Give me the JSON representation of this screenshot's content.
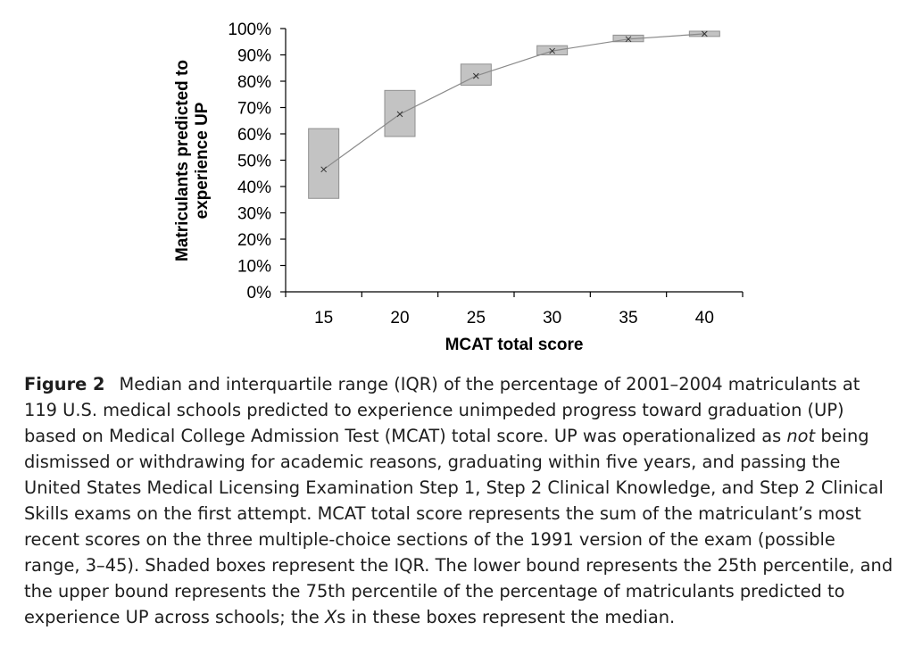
{
  "chart_data": {
    "type": "box",
    "x": [
      15,
      20,
      25,
      30,
      35,
      40
    ],
    "median": [
      46.5,
      67.5,
      82,
      91.5,
      96,
      98
    ],
    "q1": [
      35.5,
      59,
      78.5,
      90,
      95,
      97
    ],
    "q3": [
      62,
      76.5,
      86.5,
      93.5,
      97.5,
      99
    ],
    "xlabel": "MCAT total score",
    "ylabel_lines": [
      "Matriculants predicted to",
      "experience UP"
    ],
    "x_ticks": [
      "15",
      "20",
      "25",
      "30",
      "35",
      "40"
    ],
    "y_ticks": [
      "0%",
      "10%",
      "20%",
      "30%",
      "40%",
      "50%",
      "60%",
      "70%",
      "80%",
      "90%",
      "100%"
    ],
    "ylim": [
      0,
      100
    ],
    "grid": false,
    "colors": {
      "box_fill": "#c3c3c3",
      "box_stroke": "#8f8f8f",
      "line": "#8a8a8a"
    }
  },
  "caption": {
    "label": "Figure 2",
    "text_1": "Median and interquartile range (IQR) of the percentage of 2001–2004 matriculants at 119 U.S. medical schools predicted to experience unimpeded progress toward graduation (UP) based on Medical College Admission Test (MCAT) total score. UP was operationalized as ",
    "emph_1": "not",
    "text_2": " being dismissed or withdrawing for academic reasons, graduating within five years, and passing the United States Medical Licensing Examination Step 1, Step 2 Clinical Knowledge, and Step 2 Clinical Skills exams on the first attempt. MCAT total score represents the sum of the matriculant’s most recent scores on the three multiple-choice sections of the 1991 version of the exam (possible range, 3–45). Shaded boxes represent the IQR. The lower bound represents the 25th percentile, and the upper bound represents the 75th percentile of the percentage of matriculants predicted to experience UP across schools; the ",
    "emph_2": "X",
    "text_3": "s in these boxes represent the median."
  }
}
